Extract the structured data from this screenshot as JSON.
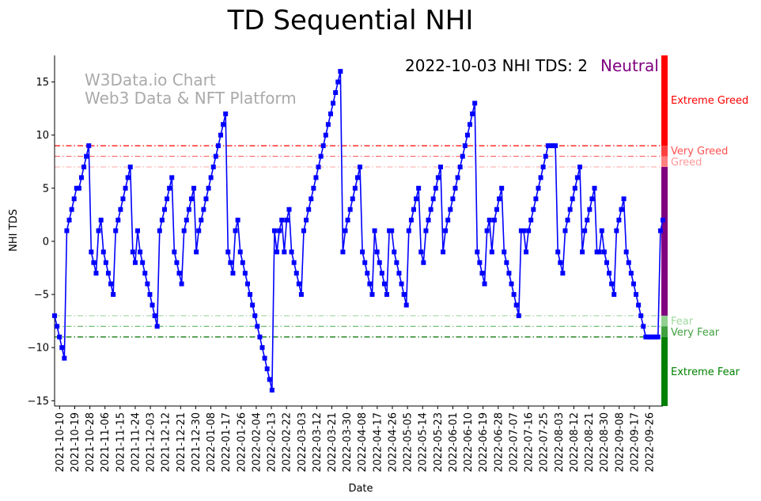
{
  "chart_data": {
    "type": "line",
    "title": "TD Sequential NHI",
    "xlabel": "Date",
    "ylabel": "NHI TDS",
    "ylim": [
      -15.5,
      17.5
    ],
    "yticks": [
      -15,
      -10,
      -5,
      0,
      5,
      10,
      15
    ],
    "date_range": [
      "2021-10-07",
      "2022-10-04"
    ],
    "xtick_labels": [
      "2021-10-10",
      "2021-10-19",
      "2021-10-28",
      "2021-11-06",
      "2021-11-15",
      "2021-11-24",
      "2021-12-03",
      "2021-12-12",
      "2021-12-21",
      "2021-12-30",
      "2022-01-08",
      "2022-01-17",
      "2022-01-26",
      "2022-02-04",
      "2022-02-13",
      "2022-02-22",
      "2022-03-03",
      "2022-03-12",
      "2022-03-21",
      "2022-03-30",
      "2022-04-08",
      "2022-04-17",
      "2022-04-26",
      "2022-05-05",
      "2022-05-14",
      "2022-05-23",
      "2022-06-01",
      "2022-06-10",
      "2022-06-19",
      "2022-06-28",
      "2022-07-07",
      "2022-07-16",
      "2022-07-25",
      "2022-08-03",
      "2022-08-12",
      "2022-08-21",
      "2022-08-30",
      "2022-09-08",
      "2022-09-17",
      "2022-09-26"
    ],
    "status": {
      "date": "2022-10-03",
      "label": "NHI TDS:",
      "value": 2,
      "sentiment": "Neutral",
      "color": "#800080"
    },
    "watermark": [
      "W3Data.io Chart",
      "Web3 Data & NFT Platform"
    ],
    "series": [
      {
        "name": "NHI TDS",
        "color": "#0000ff",
        "values": [
          -7,
          -8,
          -9,
          -10,
          -11,
          1,
          2,
          3,
          4,
          5,
          5,
          6,
          7,
          8,
          9,
          -1,
          -2,
          -3,
          1,
          2,
          -1,
          -2,
          -3,
          -4,
          -5,
          1,
          2,
          3,
          4,
          5,
          6,
          7,
          -1,
          -2,
          1,
          -1,
          -2,
          -3,
          -4,
          -5,
          -6,
          -7,
          -8,
          1,
          2,
          3,
          4,
          5,
          6,
          -1,
          -2,
          -3,
          -4,
          1,
          2,
          3,
          4,
          5,
          -1,
          1,
          2,
          3,
          4,
          5,
          6,
          7,
          8,
          9,
          10,
          11,
          12,
          -1,
          -2,
          -3,
          1,
          2,
          -1,
          -2,
          -3,
          -4,
          -5,
          -6,
          -7,
          -8,
          -9,
          -10,
          -11,
          -12,
          -13,
          -14,
          1,
          -1,
          1,
          2,
          -1,
          2,
          3,
          -1,
          -2,
          -3,
          -4,
          -5,
          1,
          2,
          3,
          4,
          5,
          6,
          7,
          8,
          9,
          10,
          11,
          12,
          13,
          14,
          15,
          16,
          -1,
          1,
          2,
          3,
          4,
          5,
          6,
          7,
          -1,
          -2,
          -3,
          -4,
          -5,
          1,
          -1,
          -2,
          -3,
          -4,
          -5,
          1,
          1,
          -1,
          -2,
          -3,
          -4,
          -5,
          -6,
          1,
          2,
          3,
          4,
          5,
          -1,
          -2,
          1,
          2,
          3,
          4,
          5,
          6,
          7,
          -1,
          1,
          2,
          3,
          4,
          5,
          6,
          7,
          8,
          9,
          10,
          11,
          12,
          13,
          -1,
          -2,
          -3,
          -4,
          1,
          2,
          -1,
          2,
          3,
          4,
          5,
          -1,
          -2,
          -3,
          -4,
          -5,
          -6,
          -7,
          1,
          1,
          -1,
          1,
          2,
          3,
          4,
          5,
          6,
          7,
          8,
          9,
          9,
          9,
          9,
          -1,
          -2,
          -3,
          1,
          2,
          3,
          4,
          5,
          6,
          7,
          -1,
          1,
          2,
          3,
          4,
          5,
          -1,
          -1,
          1,
          -1,
          -2,
          -3,
          -4,
          -5,
          1,
          2,
          3,
          4,
          -1,
          -2,
          -3,
          -4,
          -5,
          -6,
          -7,
          -8,
          -9,
          -9,
          -9,
          -9,
          -9,
          -9,
          1,
          2
        ]
      }
    ],
    "thresholds": [
      {
        "label": "Very Greed",
        "value": 8,
        "color": "#ff4040",
        "alpha": 0.75
      },
      {
        "label": "Greed",
        "value": 7,
        "color": "#ff6060",
        "alpha": 0.5
      },
      {
        "label": "Extreme Greed",
        "value": 9,
        "color": "#ff0000",
        "alpha": 1.0
      },
      {
        "label": "Fear",
        "value": -7,
        "color": "#2ca02c",
        "alpha": 0.4
      },
      {
        "label": "Very Fear",
        "value": -8,
        "color": "#2ca02c",
        "alpha": 0.75
      },
      {
        "label": "Extreme Fear",
        "value": -9,
        "color": "#007000",
        "alpha": 1.0
      }
    ],
    "sentiment_bar": [
      {
        "label": "Extreme Greed",
        "from": 9,
        "to": 17.5,
        "color": "#ff0000"
      },
      {
        "label": "Very Greed",
        "from": 8,
        "to": 9,
        "color": "#ff4040"
      },
      {
        "label": "Greed",
        "from": 7,
        "to": 8,
        "color": "#ff8080"
      },
      {
        "label": "Neutral",
        "from": -7,
        "to": 7,
        "color": "#800080"
      },
      {
        "label": "Fear",
        "from": -8,
        "to": -7,
        "color": "#90d090"
      },
      {
        "label": "Very Fear",
        "from": -9,
        "to": -8,
        "color": "#40a040"
      },
      {
        "label": "Extreme Fear",
        "from": -15.5,
        "to": -9,
        "color": "#008000"
      }
    ],
    "legend_placement": "none",
    "grid": false
  }
}
